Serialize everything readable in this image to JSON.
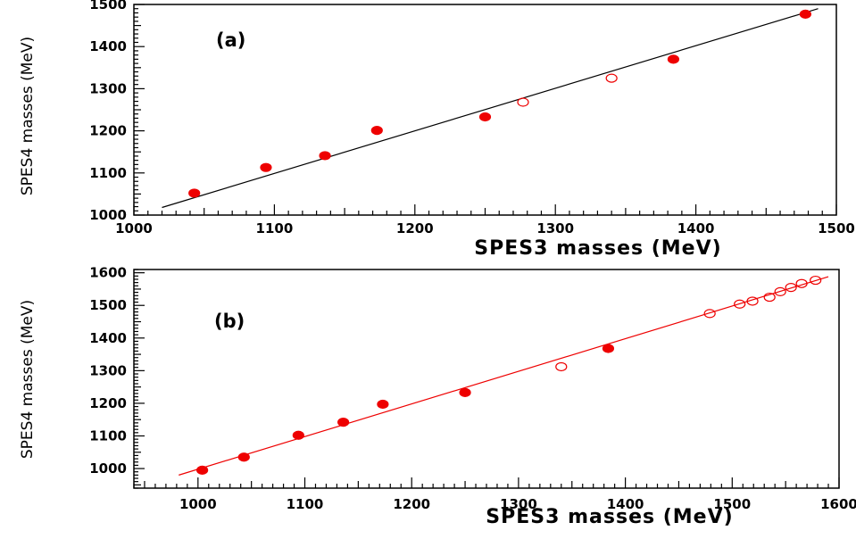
{
  "chart_data": [
    {
      "id": "a",
      "type": "scatter",
      "panel_label": "(a)",
      "xlabel": "SPES3 masses (MeV)",
      "ylabel": "SPES4 masses (MeV)",
      "xlim": [
        1000,
        1500
      ],
      "ylim": [
        1000,
        1500
      ],
      "xticks": [
        1000,
        1100,
        1200,
        1300,
        1400,
        1500
      ],
      "yticks": [
        1000,
        1100,
        1200,
        1300,
        1400,
        1500
      ],
      "grid": false,
      "fit_line": {
        "color": "#000000",
        "x": [
          1020,
          1487
        ],
        "y": [
          1018,
          1490
        ]
      },
      "series": [
        {
          "marker": "filled-circle",
          "color": "#ee0000",
          "points": [
            [
              1043,
              1052
            ],
            [
              1094,
              1113
            ],
            [
              1136,
              1141
            ],
            [
              1173,
              1201
            ],
            [
              1250,
              1233
            ],
            [
              1384,
              1370
            ],
            [
              1478,
              1477
            ]
          ]
        },
        {
          "marker": "open-circle",
          "color": "#ee0000",
          "points": [
            [
              1277,
              1268
            ],
            [
              1340,
              1325
            ]
          ]
        }
      ]
    },
    {
      "id": "b",
      "type": "scatter",
      "panel_label": "(b)",
      "xlabel": "SPES3  masses (MeV)",
      "ylabel": "SPES4 masses (MeV)",
      "xlim": [
        940,
        1600
      ],
      "ylim": [
        940,
        1610
      ],
      "xticks": [
        1000,
        1100,
        1200,
        1300,
        1400,
        1500,
        1600
      ],
      "yticks": [
        1000,
        1100,
        1200,
        1300,
        1400,
        1500,
        1600
      ],
      "grid": false,
      "fit_line": {
        "color": "#ee0000",
        "x": [
          982,
          1590
        ],
        "y": [
          980,
          1588
        ]
      },
      "series": [
        {
          "marker": "filled-circle",
          "color": "#ee0000",
          "points": [
            [
              1004,
              995
            ],
            [
              1043,
              1035
            ],
            [
              1094,
              1102
            ],
            [
              1136,
              1142
            ],
            [
              1173,
              1197
            ],
            [
              1250,
              1233
            ],
            [
              1384,
              1368
            ]
          ]
        },
        {
          "marker": "open-circle",
          "color": "#ee0000",
          "points": [
            [
              1340,
              1312
            ],
            [
              1479,
              1475
            ],
            [
              1507,
              1504
            ],
            [
              1519,
              1513
            ],
            [
              1535,
              1525
            ],
            [
              1545,
              1542
            ],
            [
              1555,
              1555
            ],
            [
              1565,
              1567
            ],
            [
              1578,
              1577
            ]
          ]
        }
      ]
    }
  ]
}
